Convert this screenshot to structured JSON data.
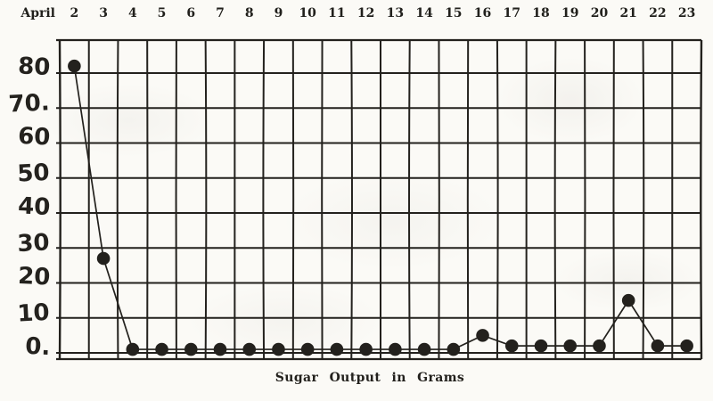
{
  "page": {
    "background_color": "#fbfaf6",
    "ink_color": "#23211d"
  },
  "chart_data": {
    "type": "line",
    "title": "Sugar Output in Grams",
    "title_position": "bottom",
    "x_axis_prefix": "April",
    "x_labels_position": "top",
    "categories": [
      2,
      3,
      4,
      5,
      6,
      7,
      8,
      9,
      10,
      11,
      12,
      13,
      14,
      15,
      16,
      17,
      18,
      19,
      20,
      21,
      22,
      23
    ],
    "series": [
      {
        "name": "Sugar Output",
        "values": [
          82,
          27,
          1,
          1,
          1,
          1,
          1,
          1,
          1,
          1,
          1,
          1,
          1,
          1,
          5,
          2,
          2,
          2,
          2,
          15,
          2,
          2
        ]
      }
    ],
    "ylim": [
      0,
      90
    ],
    "y_ticks": [
      {
        "v": 80,
        "label": "80"
      },
      {
        "v": 70,
        "label": "70."
      },
      {
        "v": 60,
        "label": "60"
      },
      {
        "v": 50,
        "label": "50"
      },
      {
        "v": 40,
        "label": "40"
      },
      {
        "v": 30,
        "label": "30"
      },
      {
        "v": 20,
        "label": "20"
      },
      {
        "v": 10,
        "label": "10"
      },
      {
        "v": 0,
        "label": "0."
      }
    ],
    "grid": "on",
    "marker": "filled-circle",
    "line_color": "#23211d"
  }
}
